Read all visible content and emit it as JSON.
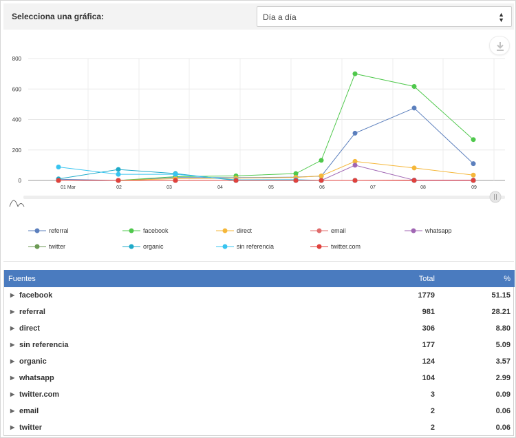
{
  "header": {
    "title": "Selecciona una gráfica:",
    "select_value": "Día a día"
  },
  "colors": {
    "referral": "#5b7fbd",
    "facebook": "#4fc84c",
    "direct": "#f5b73a",
    "email": "#e06c6c",
    "whatsapp": "#a066b3",
    "twitter": "#6c9a54",
    "organic": "#1eaac9",
    "sin referencia": "#38c4f0",
    "twitter.com": "#e0413d",
    "header_bg": "#4a7bbf"
  },
  "chart_data": {
    "type": "line",
    "x": [
      "01 Mar",
      "02",
      "03",
      "04",
      "05",
      "06",
      "07",
      "08",
      "09"
    ],
    "y_ticks": [
      "800",
      "600",
      "400",
      "200",
      "0"
    ],
    "ylim": [
      0,
      800
    ],
    "grid": true,
    "legend_position": "bottom",
    "series": [
      {
        "name": "referral",
        "values": [
          8,
          0,
          20,
          18,
          22,
          28,
          310,
          475,
          110
        ]
      },
      {
        "name": "facebook",
        "values": [
          0,
          0,
          25,
          30,
          45,
          132,
          700,
          617,
          268
        ]
      },
      {
        "name": "direct",
        "values": [
          0,
          0,
          12,
          15,
          20,
          30,
          125,
          82,
          35
        ]
      },
      {
        "name": "email",
        "values": [
          0,
          0,
          0,
          0,
          0,
          0,
          0,
          2,
          0
        ]
      },
      {
        "name": "whatsapp",
        "values": [
          0,
          0,
          0,
          0,
          0,
          0,
          100,
          2,
          2
        ]
      },
      {
        "name": "twitter",
        "values": [
          0,
          0,
          0,
          0,
          2,
          0,
          0,
          0,
          0
        ]
      },
      {
        "name": "organic",
        "values": [
          10,
          72,
          45,
          0,
          0,
          0,
          0,
          0,
          0
        ]
      },
      {
        "name": "sin referencia",
        "values": [
          88,
          40,
          40,
          4,
          5,
          0,
          0,
          0,
          0
        ]
      },
      {
        "name": "twitter.com",
        "values": [
          0,
          0,
          0,
          0,
          0,
          0,
          0,
          0,
          0
        ]
      }
    ]
  },
  "table": {
    "headers": {
      "name": "Fuentes",
      "total": "Total",
      "pct": "%"
    },
    "rows": [
      {
        "name": "facebook",
        "total": "1779",
        "pct": "51.15"
      },
      {
        "name": "referral",
        "total": "981",
        "pct": "28.21"
      },
      {
        "name": "direct",
        "total": "306",
        "pct": "8.80"
      },
      {
        "name": "sin referencia",
        "total": "177",
        "pct": "5.09"
      },
      {
        "name": "organic",
        "total": "124",
        "pct": "3.57"
      },
      {
        "name": "whatsapp",
        "total": "104",
        "pct": "2.99"
      },
      {
        "name": "twitter.com",
        "total": "3",
        "pct": "0.09"
      },
      {
        "name": "email",
        "total": "2",
        "pct": "0.06"
      },
      {
        "name": "twitter",
        "total": "2",
        "pct": "0.06"
      }
    ]
  }
}
